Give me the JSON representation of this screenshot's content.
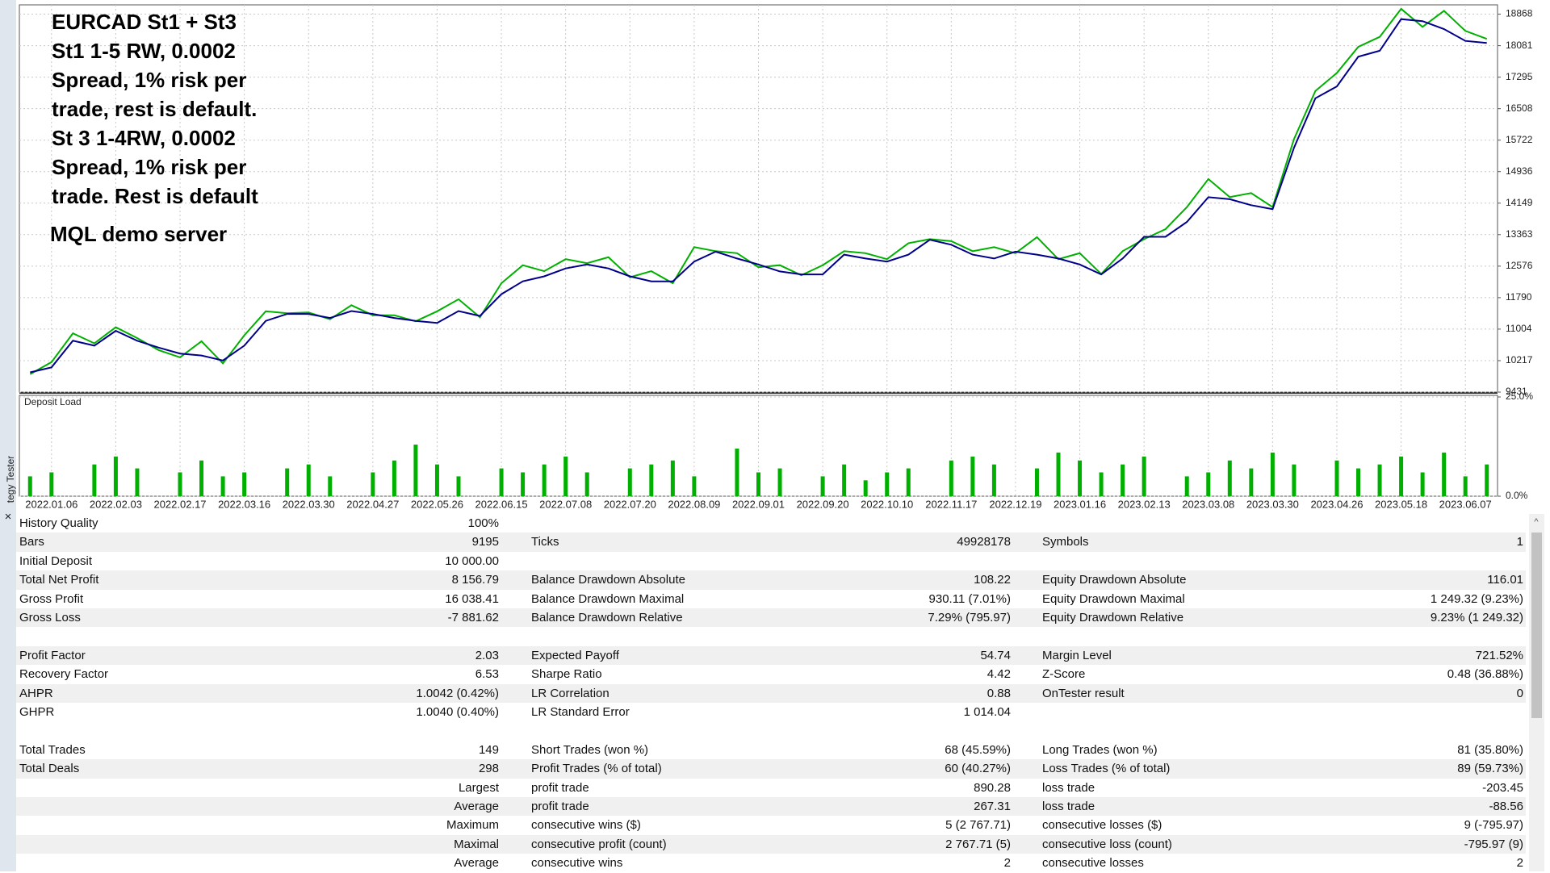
{
  "sidebar": {
    "label": "tegy Tester"
  },
  "chart_data": [
    {
      "type": "line",
      "annotations": [
        "EURCAD St1 + St3",
        "St1 1-5 RW, 0.0002",
        "Spread, 1% risk per",
        "trade, rest is default.",
        "St 3 1-4RW, 0.0002",
        "Spread, 1% risk per",
        "trade. Rest is default",
        "MQL demo server"
      ],
      "categories": [
        null,
        "2022.01.06",
        null,
        null,
        "2022.02.03",
        null,
        null,
        "2022.02.17",
        null,
        null,
        "2022.03.16",
        null,
        null,
        "2022.03.30",
        null,
        null,
        "2022.04.27",
        null,
        null,
        "2022.05.26",
        null,
        null,
        "2022.06.15",
        null,
        null,
        "2022.07.08",
        null,
        null,
        "2022.07.20",
        null,
        null,
        "2022.08.09",
        null,
        null,
        "2022.09.01",
        null,
        null,
        "2022.09.20",
        null,
        null,
        "2022.10.10",
        null,
        null,
        "2022.11.17",
        null,
        null,
        "2022.12.19",
        null,
        null,
        "2023.01.16",
        null,
        null,
        "2023.02.13",
        null,
        null,
        "2023.03.08",
        null,
        null,
        "2023.03.30",
        null,
        null,
        "2023.04.26",
        null,
        null,
        "2023.05.18",
        null,
        null,
        "2023.06.07",
        null
      ],
      "series": [
        {
          "color": "#00b000",
          "values": [
            9880,
            10180,
            10900,
            10650,
            11050,
            10780,
            10480,
            10300,
            10700,
            10150,
            10850,
            11450,
            11400,
            11420,
            11250,
            11600,
            11350,
            11350,
            11200,
            11450,
            11750,
            11300,
            12150,
            12600,
            12450,
            12750,
            12650,
            12800,
            12300,
            12450,
            12150,
            13050,
            12950,
            12900,
            12550,
            12600,
            12350,
            12600,
            12950,
            12900,
            12750,
            13150,
            13250,
            13200,
            12950,
            13050,
            12900,
            13300,
            12750,
            12900,
            12380,
            12950,
            13250,
            13500,
            14050,
            14750,
            14300,
            14400,
            14050,
            15750,
            16950,
            17400,
            18050,
            18300,
            19000,
            18550,
            18950,
            18450,
            18250
          ]
        },
        {
          "color": "#00008b",
          "values": [
            9925,
            10049,
            10715,
            10592,
            10962,
            10715,
            10543,
            10394,
            10345,
            10221,
            10592,
            11209,
            11382,
            11382,
            11283,
            11456,
            11382,
            11283,
            11209,
            11160,
            11456,
            11333,
            11876,
            12197,
            12321,
            12519,
            12617,
            12519,
            12321,
            12197,
            12197,
            12691,
            12938,
            12766,
            12617,
            12444,
            12370,
            12370,
            12864,
            12766,
            12691,
            12864,
            13235,
            13111,
            12864,
            12766,
            12938,
            12864,
            12766,
            12617,
            12370,
            12766,
            13309,
            13309,
            13679,
            14297,
            14248,
            14099,
            14000,
            15532,
            16767,
            17063,
            17804,
            17953,
            18743,
            18694,
            18496,
            18200,
            18150
          ]
        }
      ],
      "ylim": [
        9431,
        19100
      ],
      "yticks": [
        18868,
        18081,
        17295,
        16508,
        15722,
        14936,
        14149,
        13363,
        12576,
        11790,
        11004,
        10217,
        9431
      ],
      "grid": true
    },
    {
      "type": "bar",
      "title": "Deposit Load",
      "color": "#00b000",
      "values": [
        5,
        6,
        0,
        8,
        10,
        7,
        0,
        6,
        9,
        5,
        6,
        0,
        7,
        8,
        5,
        0,
        6,
        9,
        13,
        8,
        5,
        0,
        7,
        6,
        8,
        10,
        6,
        0,
        7,
        8,
        9,
        5,
        0,
        12,
        6,
        7,
        0,
        5,
        8,
        4,
        6,
        7,
        0,
        9,
        10,
        8,
        0,
        7,
        11,
        9,
        6,
        8,
        10,
        0,
        5,
        6,
        9,
        7,
        11,
        8,
        0,
        9,
        7,
        8,
        10,
        6,
        11,
        5,
        8
      ],
      "ylim": [
        0,
        25
      ],
      "yticks": [
        {
          "value": 25,
          "label": "25.0%"
        },
        {
          "value": 0,
          "label": "0.0%"
        }
      ],
      "grid": true
    }
  ],
  "table": {
    "groups": [
      [
        [
          "History Quality",
          "100%"
        ],
        [
          "Bars",
          "9195",
          "Ticks",
          "49928178",
          "Symbols",
          "1"
        ],
        [
          "Initial Deposit",
          "10 000.00"
        ],
        [
          "Total Net Profit",
          "8 156.79",
          "Balance Drawdown Absolute",
          "108.22",
          "Equity Drawdown Absolute",
          "116.01"
        ],
        [
          "Gross Profit",
          "16 038.41",
          "Balance Drawdown Maximal",
          "930.11 (7.01%)",
          "Equity Drawdown Maximal",
          "1 249.32 (9.23%)"
        ],
        [
          "Gross Loss",
          "-7 881.62",
          "Balance Drawdown Relative",
          "7.29% (795.97)",
          "Equity Drawdown Relative",
          "9.23% (1 249.32)"
        ]
      ],
      [
        [
          "Profit Factor",
          "2.03",
          "Expected Payoff",
          "54.74",
          "Margin Level",
          "721.52%"
        ],
        [
          "Recovery Factor",
          "6.53",
          "Sharpe Ratio",
          "4.42",
          "Z-Score",
          "0.48 (36.88%)"
        ],
        [
          "AHPR",
          "1.0042 (0.42%)",
          "LR Correlation",
          "0.88",
          "OnTester result",
          "0"
        ],
        [
          "GHPR",
          "1.0040 (0.40%)",
          "LR Standard Error",
          "1 014.04"
        ]
      ],
      [
        [
          "Total Trades",
          "149",
          "Short Trades (won %)",
          "68 (45.59%)",
          "Long Trades (won %)",
          "81 (35.80%)"
        ],
        [
          "Total Deals",
          "298",
          "Profit Trades (% of total)",
          "60 (40.27%)",
          "Loss Trades (% of total)",
          "89 (59.73%)"
        ],
        [
          null,
          "Largest",
          "profit trade",
          "890.28",
          "loss trade",
          "-203.45"
        ],
        [
          null,
          "Average",
          "profit trade",
          "267.31",
          "loss trade",
          "-88.56"
        ],
        [
          null,
          "Maximum",
          "consecutive wins ($)",
          "5 (2 767.71)",
          "consecutive losses ($)",
          "9 (-795.97)"
        ],
        [
          null,
          "Maximal",
          "consecutive profit (count)",
          "2 767.71 (5)",
          "consecutive loss (count)",
          "-795.97 (9)"
        ],
        [
          null,
          "Average",
          "consecutive wins",
          "2",
          "consecutive losses",
          "2"
        ]
      ]
    ]
  }
}
